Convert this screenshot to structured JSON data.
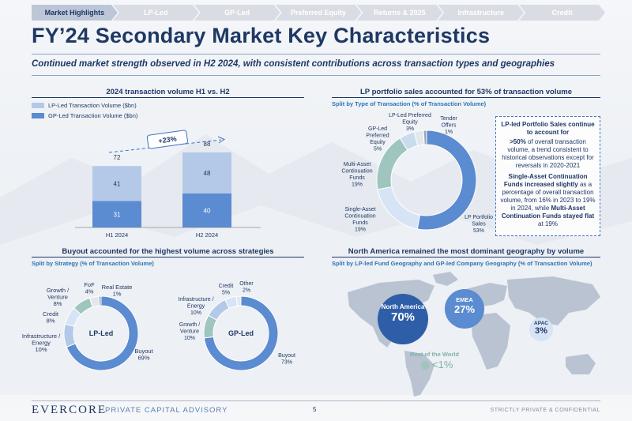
{
  "nav": {
    "tabs": [
      {
        "label": "Market Highlights",
        "active": true
      },
      {
        "label": "LP-Led",
        "active": false
      },
      {
        "label": "GP-Led",
        "active": false
      },
      {
        "label": "Preferred Equity",
        "active": false
      },
      {
        "label": "Returns & 2025",
        "active": false
      },
      {
        "label": "Infrastructure",
        "active": false
      },
      {
        "label": "Credit",
        "active": false
      }
    ]
  },
  "title": "FY’24 Secondary Market Key Characteristics",
  "subtitle": "Continued market strength observed in H2 2024, with consistent contributions across transaction types and geographies",
  "colors": {
    "navy": "#1f3864",
    "dark_blue": "#5b8bd0",
    "light_blue": "#b4c9e8",
    "teal": "#9ec5be",
    "pale": "#d6e4f5"
  },
  "volume_section": {
    "title": "2024 transaction volume H1 vs. H2",
    "legend": [
      "LP-Led Transaction Volume ($bn)",
      "GP-Led Transaction Volume ($bn)"
    ],
    "growth_label": "+23%"
  },
  "lp_section": {
    "title": "LP portfolio sales accounted for 53% of transaction volume",
    "subtitle": "Split by Type of Transaction (% of Transaction Volume)"
  },
  "callout": {
    "head": "LP-led Portfolio Sales continue to account for",
    "p1_bold": ">50%",
    "p1_rest": " of overall transaction volume, a trend consistent to historical observations except for reversals in 2020-2021",
    "p2_bold": "Single-Asset Continuation Funds increased slightly",
    "p2_rest": " as a percentage of overall transaction volume, from 16% in 2023 to 19% in 2024, while ",
    "p2_bold2": "Multi-Asset Continuation Funds stayed flat",
    "p2_end": " at 19%"
  },
  "strategy_section": {
    "title": "Buyout accounted for the highest volume across strategies",
    "subtitle": "Split by Strategy (% of Transaction Volume)"
  },
  "geo_section": {
    "title": "North America remained the most dominant geography by volume",
    "subtitle": "Split by LP-led Fund Geography and GP-led Company Geography (% of Transaction Volume)",
    "regions": [
      {
        "name": "North America",
        "value": "70%"
      },
      {
        "name": "EMEA",
        "value": "27%"
      },
      {
        "name": "APAC",
        "value": "3%"
      },
      {
        "name": "Rest of the World",
        "value": "<1%"
      }
    ]
  },
  "footer": {
    "logo": "EVERCORE",
    "division": "PRIVATE CAPITAL ADVISORY",
    "page": "5",
    "confidential": "STRICTLY PRIVATE & CONFIDENTIAL"
  },
  "chart_data": [
    {
      "type": "bar",
      "stacked": true,
      "categories": [
        "H1 2024",
        "H2 2024"
      ],
      "series": [
        {
          "name": "GP-Led Transaction Volume ($bn)",
          "values": [
            31,
            40
          ],
          "color": "#5b8bd0"
        },
        {
          "name": "LP-Led Transaction Volume ($bn)",
          "values": [
            41,
            48
          ],
          "color": "#b4c9e8"
        }
      ],
      "totals": [
        72,
        88
      ],
      "annotation": "+23%"
    },
    {
      "type": "pie",
      "donut": true,
      "slices": [
        {
          "label": "LP Portfolio Sales",
          "value": 53,
          "color": "#5b8bd0"
        },
        {
          "label": "Single-Asset Continuation Funds",
          "value": 19,
          "color": "#d6e4f5"
        },
        {
          "label": "Multi-Asset Continuation Funds",
          "value": 19,
          "color": "#9ec5be"
        },
        {
          "label": "GP-Led Preferred Equity",
          "value": 5,
          "color": "#c9dced"
        },
        {
          "label": "LP-Led Preferred Equity",
          "value": 3,
          "color": "#e3e8ee"
        },
        {
          "label": "Tender Offers",
          "value": 1,
          "color": "#9aa6b8"
        }
      ]
    },
    {
      "type": "pie",
      "donut": true,
      "center_label": "LP-Led",
      "slices": [
        {
          "label": "Buyout",
          "value": 69,
          "color": "#5b8bd0"
        },
        {
          "label": "Infrastructure / Energy",
          "value": 10,
          "color": "#b4c9e8"
        },
        {
          "label": "Credit",
          "value": 8,
          "color": "#d6e4f5"
        },
        {
          "label": "Growth / Venture",
          "value": 8,
          "color": "#9ec5be"
        },
        {
          "label": "FoF",
          "value": 4,
          "color": "#e3e8ee"
        },
        {
          "label": "Real Estate",
          "value": 1,
          "color": "#9aa6b8"
        }
      ]
    },
    {
      "type": "pie",
      "donut": true,
      "center_label": "GP-Led",
      "slices": [
        {
          "label": "Buyout",
          "value": 73,
          "color": "#5b8bd0"
        },
        {
          "label": "Growth / Venture",
          "value": 10,
          "color": "#9ec5be"
        },
        {
          "label": "Infrastructure / Energy",
          "value": 10,
          "color": "#b4c9e8"
        },
        {
          "label": "Credit",
          "value": 5,
          "color": "#d6e4f5"
        },
        {
          "label": "Other",
          "value": 2,
          "color": "#e3e8ee"
        }
      ]
    }
  ]
}
